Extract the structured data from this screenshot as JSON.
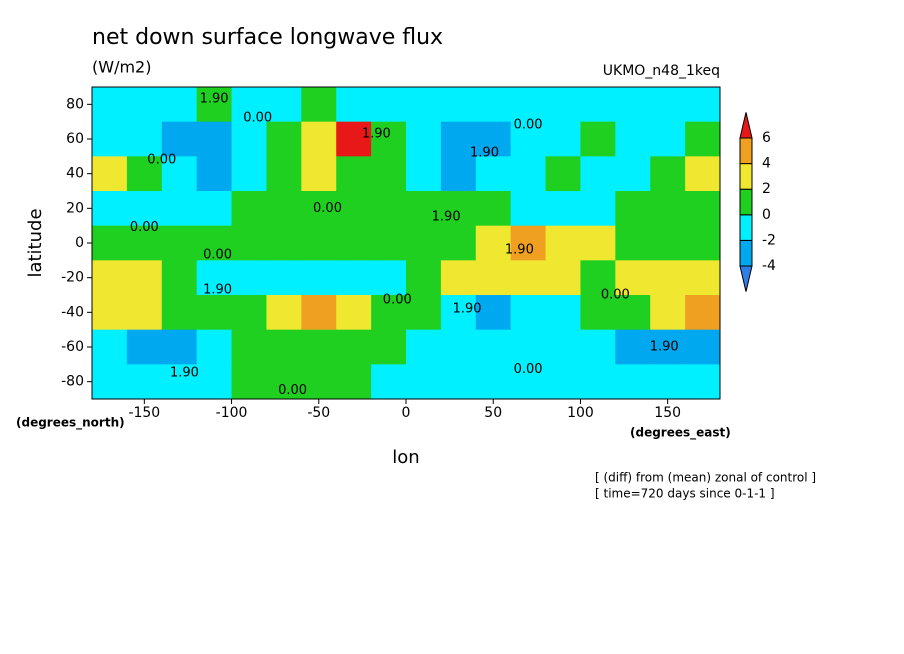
{
  "chart_data": {
    "type": "contour",
    "title": "net down surface longwave flux",
    "subtitle": "(W/m2)",
    "model": "UKMO_n48_1keq",
    "xlabel": "lon",
    "ylabel": "latitude",
    "xunits": "(degrees_east)",
    "yunits": "(degrees_north)",
    "notes": [
      "[ (diff) from (mean) zonal of control ]",
      "[ time=720 days since 0-1-1 ]"
    ],
    "xlim": [
      -180,
      180
    ],
    "ylim": [
      -90,
      90
    ],
    "xticks": [
      -150,
      -100,
      -50,
      0,
      50,
      100,
      150
    ],
    "yticks": [
      -80,
      -60,
      -40,
      -20,
      0,
      20,
      40,
      60,
      80
    ],
    "x": [
      -170,
      -150,
      -130,
      -110,
      -90,
      -70,
      -50,
      -30,
      -10,
      10,
      30,
      50,
      70,
      90,
      110,
      130,
      150,
      170
    ],
    "y": [
      80,
      60,
      40,
      20,
      0,
      -20,
      -40,
      -60,
      -80
    ],
    "z": [
      [
        -1,
        -1,
        -1,
        1,
        -1,
        -1,
        1,
        -1,
        -1,
        -1,
        -1,
        -1,
        -1,
        -1,
        -1,
        -1,
        -1,
        -1
      ],
      [
        -1,
        -1,
        -3,
        -3,
        -1,
        1,
        3,
        6.5,
        1,
        -1,
        -3,
        -3,
        -1,
        -1,
        1,
        -1,
        -1,
        1
      ],
      [
        3,
        1,
        -1,
        -3,
        -1,
        1,
        3,
        1,
        1,
        -1,
        -3,
        -1,
        -1,
        1,
        -1,
        -1,
        1,
        3
      ],
      [
        -1,
        -1,
        -1,
        -1,
        1,
        1,
        1,
        1,
        1,
        1,
        1,
        1,
        -1,
        -1,
        -1,
        1,
        1,
        1
      ],
      [
        1,
        1,
        1,
        1,
        1,
        1,
        1,
        1,
        1,
        1,
        1,
        3,
        4.5,
        3,
        3,
        1,
        1,
        1
      ],
      [
        3,
        3,
        1,
        -1,
        -1,
        -1,
        -1,
        -1,
        -1,
        1,
        3,
        3,
        3,
        3,
        1,
        3,
        3,
        3
      ],
      [
        3,
        3,
        1,
        1,
        1,
        3,
        4.5,
        3,
        1,
        1,
        -1,
        -3,
        -1,
        -1,
        1,
        1,
        3,
        4.5
      ],
      [
        -1,
        -3,
        -3,
        -1,
        1,
        1,
        1,
        1,
        1,
        -1,
        -1,
        -1,
        -1,
        -1,
        -1,
        -3,
        -3,
        -3
      ],
      [
        -1,
        -1,
        -1,
        -1,
        1,
        1,
        1,
        1,
        -1,
        -1,
        -1,
        -1,
        -1,
        -1,
        -1,
        -1,
        -1,
        -1
      ]
    ],
    "levels": [
      -4,
      -2,
      0,
      2,
      4,
      6
    ],
    "colors": [
      "#2f7ee6",
      "#00a8f0",
      "#00f0ff",
      "#20d020",
      "#f0e830",
      "#f0a020",
      "#e81818"
    ],
    "contour_labels": [
      {
        "label": "1.90",
        "lon": -110,
        "lat": 83
      },
      {
        "label": "0.00",
        "lon": -85,
        "lat": 72
      },
      {
        "label": "1.90",
        "lon": -17,
        "lat": 63
      },
      {
        "label": "0.00",
        "lon": 70,
        "lat": 68
      },
      {
        "label": "1.90",
        "lon": 45,
        "lat": 52
      },
      {
        "label": "0.00",
        "lon": -140,
        "lat": 48
      },
      {
        "label": "0.00",
        "lon": -45,
        "lat": 20
      },
      {
        "label": "1.90",
        "lon": 23,
        "lat": 15
      },
      {
        "label": "0.00",
        "lon": -150,
        "lat": 9
      },
      {
        "label": "0.00",
        "lon": -108,
        "lat": -7
      },
      {
        "label": "1.90",
        "lon": 65,
        "lat": -4
      },
      {
        "label": "1.90",
        "lon": -108,
        "lat": -27
      },
      {
        "label": "0.00",
        "lon": -5,
        "lat": -33
      },
      {
        "label": "1.90",
        "lon": 35,
        "lat": -38
      },
      {
        "label": "0.00",
        "lon": 120,
        "lat": -30
      },
      {
        "label": "1.90",
        "lon": 148,
        "lat": -60
      },
      {
        "label": "1.90",
        "lon": -127,
        "lat": -75
      },
      {
        "label": "0.00",
        "lon": -65,
        "lat": -85
      },
      {
        "label": "0.00",
        "lon": 70,
        "lat": -73
      }
    ]
  }
}
